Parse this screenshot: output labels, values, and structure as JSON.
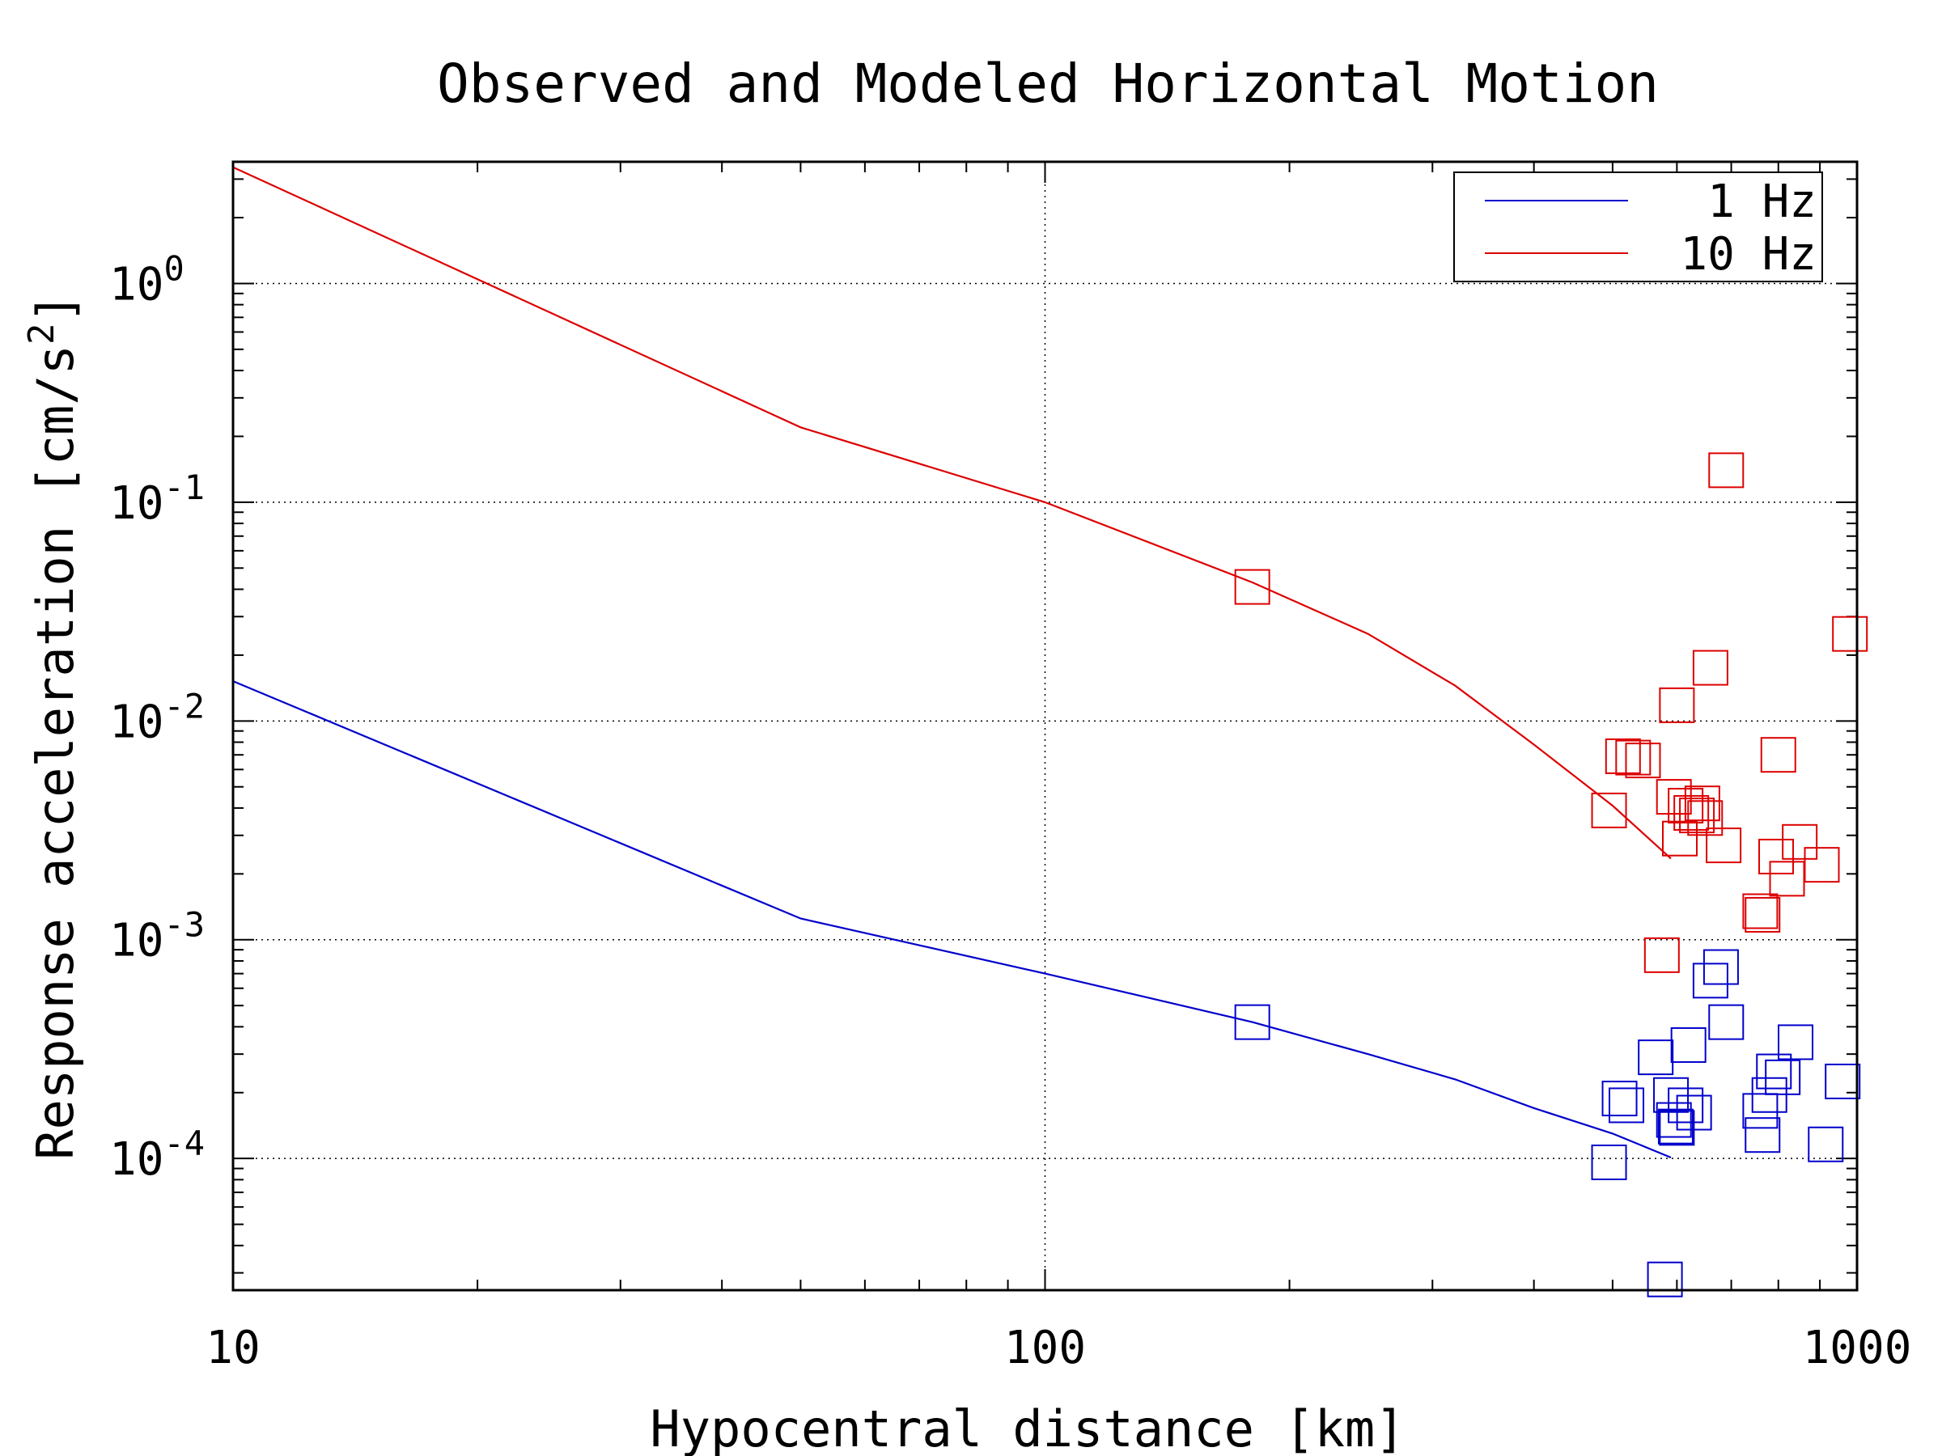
{
  "chart_data": {
    "type": "line",
    "title": "Observed and Modeled Horizontal Motion",
    "xlabel": "Hypocentral distance [km]",
    "ylabel": "Response acceleration [cm/s",
    "ylabel_sup": "2",
    "ylabel_tail": "]",
    "x_scale": "log",
    "y_scale": "log",
    "xlim": [
      10,
      1000
    ],
    "ylim": [
      2.5e-05,
      3.6
    ],
    "x_ticks": [
      {
        "value": 10,
        "label": "10"
      },
      {
        "value": 100,
        "label": "100"
      },
      {
        "value": 1000,
        "label": "1000"
      }
    ],
    "y_ticks": [
      {
        "value": 0.0001,
        "base": "10",
        "exp": "-4"
      },
      {
        "value": 0.001,
        "base": "10",
        "exp": "-3"
      },
      {
        "value": 0.01,
        "base": "10",
        "exp": "-2"
      },
      {
        "value": 0.1,
        "base": "10",
        "exp": "-1"
      },
      {
        "value": 1,
        "base": "10",
        "exp": "0"
      }
    ],
    "grid": true,
    "legend_position": "top-right",
    "series": [
      {
        "name": "1 Hz",
        "color": "#0000cc",
        "line": [
          [
            10,
            0.0152
          ],
          [
            50,
            0.00125
          ],
          [
            100,
            0.0007
          ],
          [
            180,
            0.00042
          ],
          [
            250,
            0.0003
          ],
          [
            320,
            0.00023
          ],
          [
            400,
            0.00017
          ],
          [
            500,
            0.00013
          ],
          [
            590,
            0.000101
          ]
        ],
        "observed": [
          [
            180,
            0.00042
          ],
          [
            495,
            9.6e-05
          ],
          [
            510,
            0.000188
          ],
          [
            520,
            0.000175
          ],
          [
            565,
            0.00029
          ],
          [
            580,
            2.8e-05
          ],
          [
            590,
            0.000195
          ],
          [
            595,
            0.00015
          ],
          [
            598,
            0.00014
          ],
          [
            600,
            0.000138
          ],
          [
            615,
            0.000175
          ],
          [
            620,
            0.00033
          ],
          [
            630,
            0.000162
          ],
          [
            660,
            0.00065
          ],
          [
            680,
            0.00075
          ],
          [
            690,
            0.00042
          ],
          [
            760,
            0.000165
          ],
          [
            765,
            0.000128
          ],
          [
            780,
            0.000195
          ],
          [
            790,
            0.00025
          ],
          [
            810,
            0.000235
          ],
          [
            840,
            0.00034
          ],
          [
            915,
            0.000116
          ],
          [
            960,
            0.000225
          ]
        ]
      },
      {
        "name": "10 Hz",
        "color": "#dd0000",
        "line": [
          [
            10,
            3.4
          ],
          [
            50,
            0.22
          ],
          [
            100,
            0.1
          ],
          [
            180,
            0.043
          ],
          [
            250,
            0.025
          ],
          [
            320,
            0.0145
          ],
          [
            400,
            0.0078
          ],
          [
            500,
            0.0041
          ],
          [
            590,
            0.00235
          ]
        ],
        "observed": [
          [
            180,
            0.041
          ],
          [
            495,
            0.0039
          ],
          [
            515,
            0.0069
          ],
          [
            530,
            0.0068
          ],
          [
            545,
            0.0066
          ],
          [
            575,
            0.00085
          ],
          [
            595,
            0.0045
          ],
          [
            600,
            0.0118
          ],
          [
            605,
            0.0029
          ],
          [
            615,
            0.0041
          ],
          [
            625,
            0.0038
          ],
          [
            635,
            0.0037
          ],
          [
            645,
            0.0042
          ],
          [
            650,
            0.0036
          ],
          [
            660,
            0.0175
          ],
          [
            685,
            0.0027
          ],
          [
            690,
            0.14
          ],
          [
            760,
            0.00135
          ],
          [
            765,
            0.0013
          ],
          [
            795,
            0.0024
          ],
          [
            800,
            0.007
          ],
          [
            820,
            0.0019
          ],
          [
            850,
            0.0028
          ],
          [
            905,
            0.0022
          ],
          [
            980,
            0.025
          ]
        ]
      }
    ]
  }
}
